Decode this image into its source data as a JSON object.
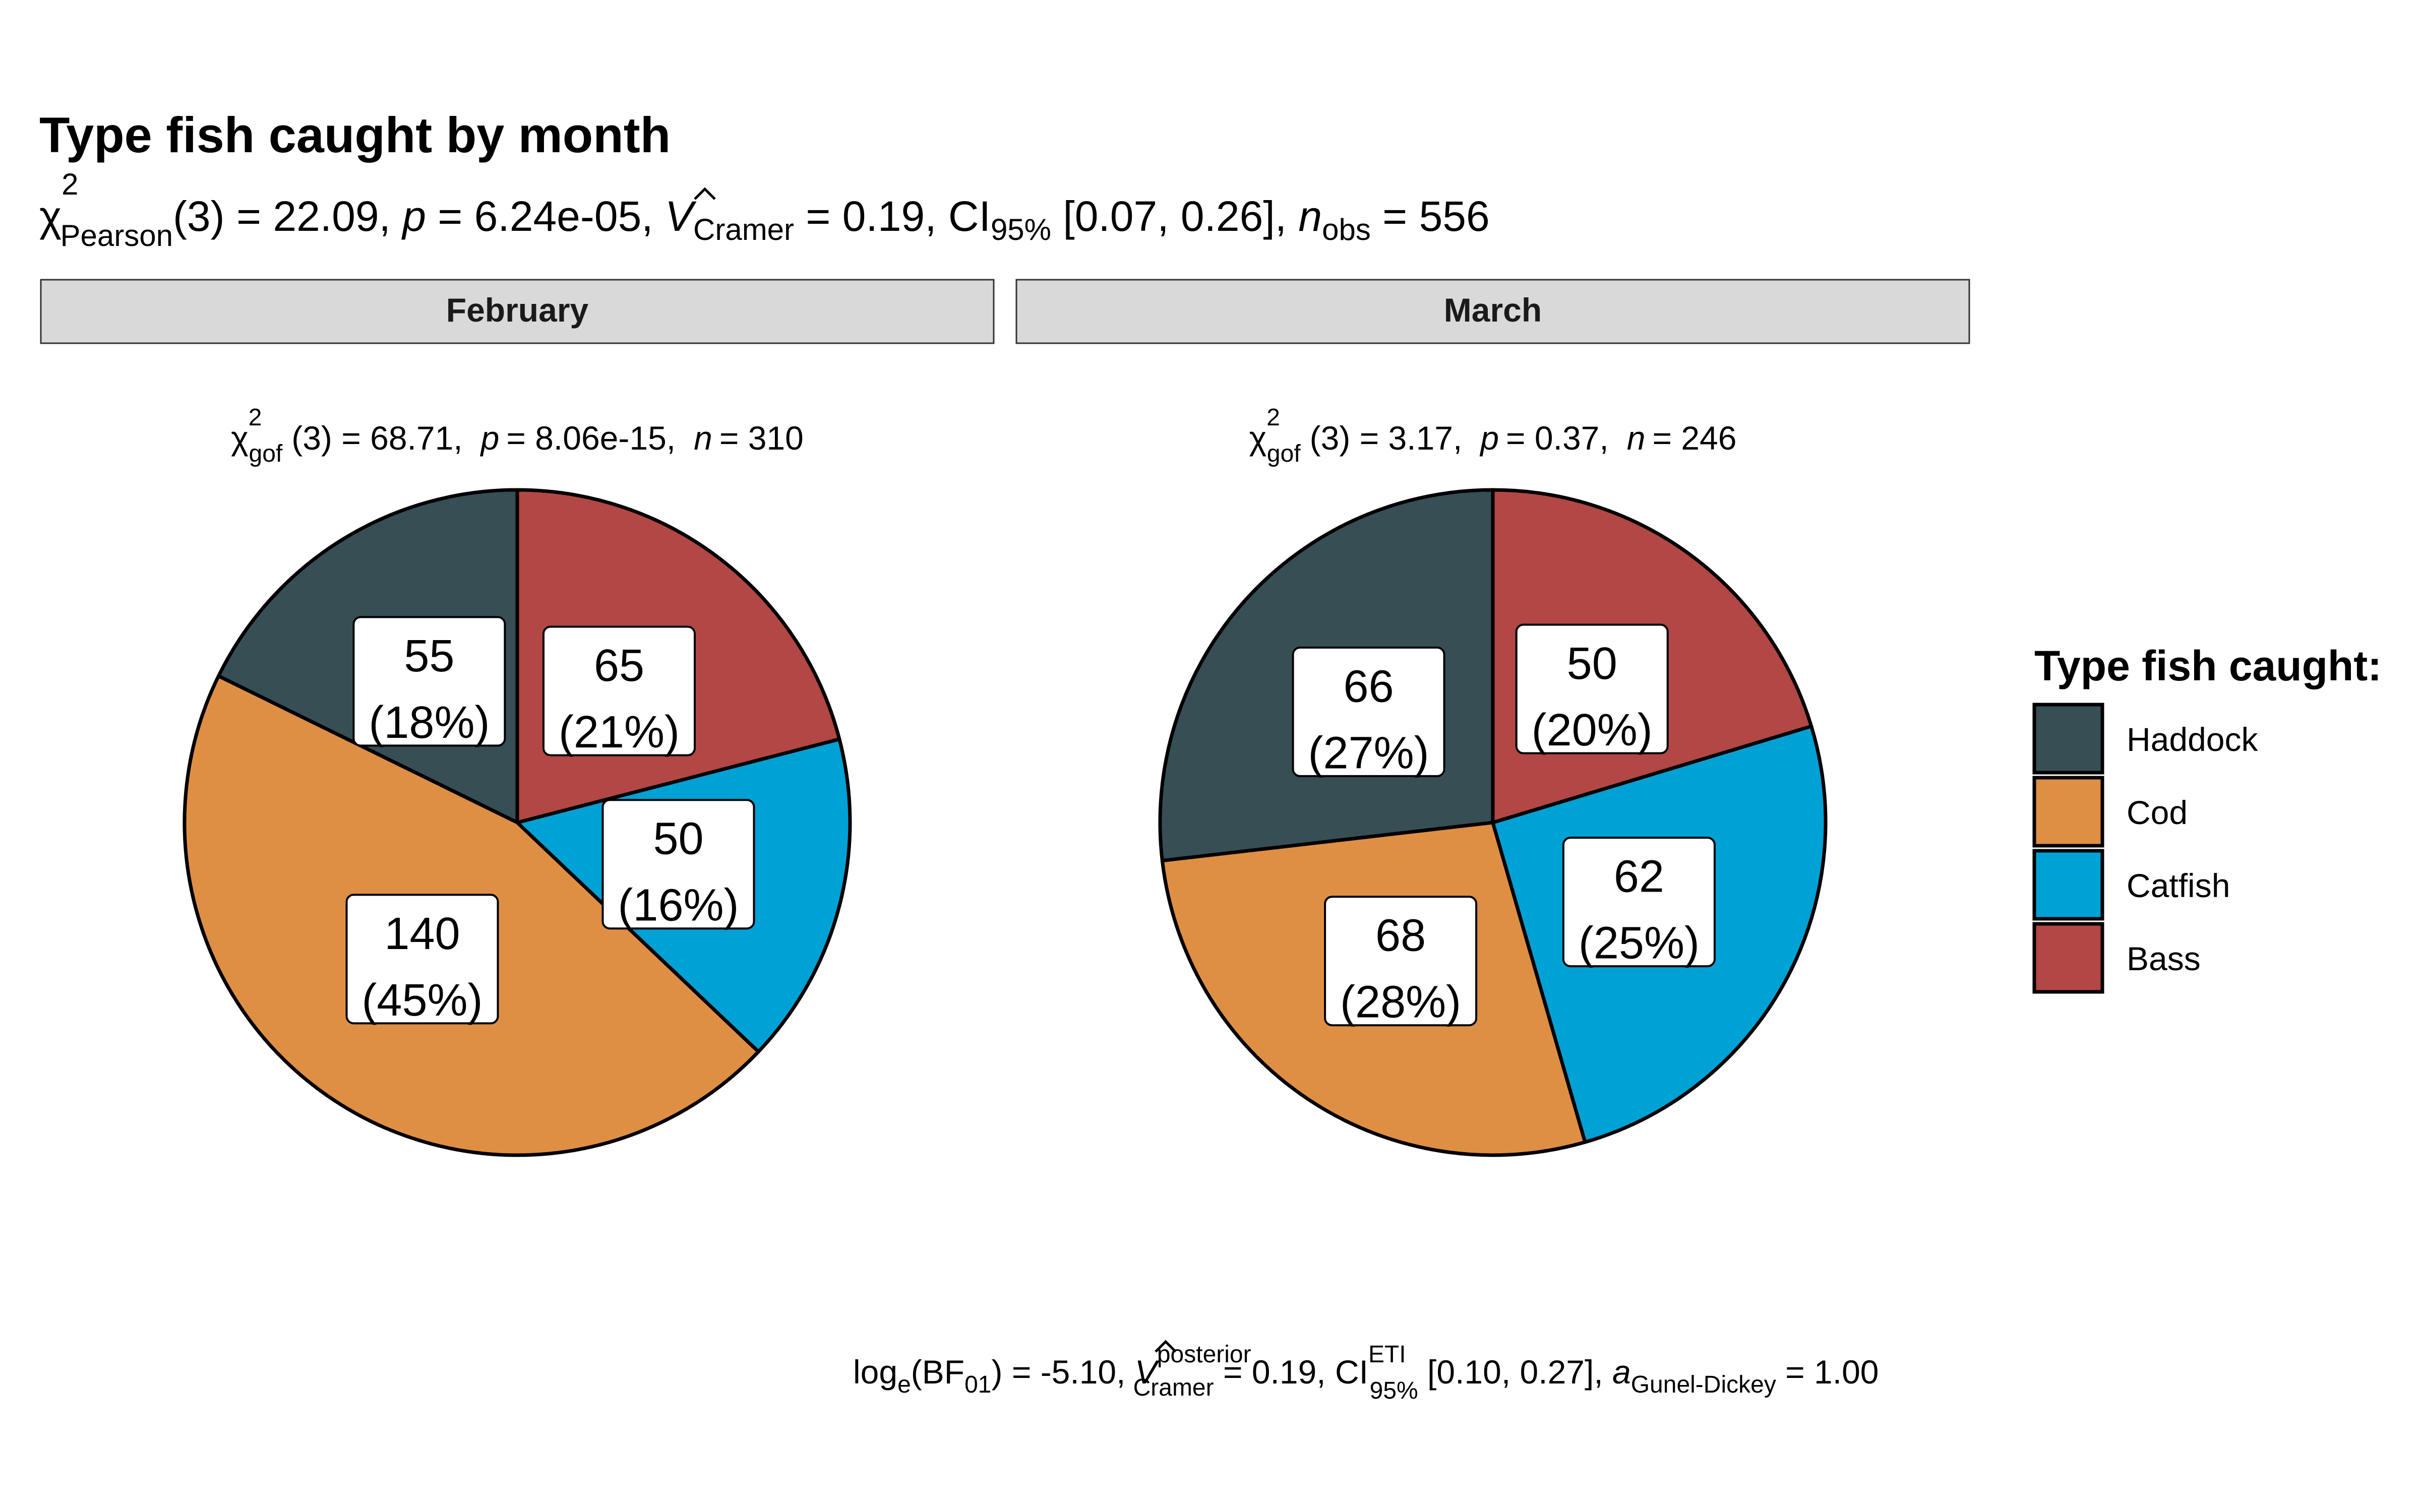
{
  "chart_data": {
    "type": "pie",
    "title": "Type fish caught by month",
    "subtitle_parts": {
      "chi": "χ",
      "chi_sup": "2",
      "chi_sub": "Pearson",
      "df": "(3) = 22.09, ",
      "p_label": "p",
      "p_value": " = 6.24e-05, ",
      "v_label": "V",
      "v_sub": "Cramer",
      "v_value": " = 0.19, CI",
      "ci_sub": "95%",
      "ci_value": " [0.07, 0.26], ",
      "n_label": "n",
      "n_sub": "obs",
      "n_value": " = 556"
    },
    "legend_title": "Type fish caught:",
    "categories": [
      "Haddock",
      "Cod",
      "Catfish",
      "Bass"
    ],
    "colors": {
      "Haddock": "#374E55",
      "Cod": "#DF8F44",
      "Catfish": "#00A1D5",
      "Bass": "#B24745"
    },
    "legend_position": "right",
    "facets": [
      {
        "name": "February",
        "stat_parts": {
          "chi": "χ",
          "chi_sup": "2",
          "chi_sub": "gof",
          "df": "(3) = 68.71,",
          "p_label": "p",
          "p_value": "= 8.06e-15,",
          "n_label": "n",
          "n_value": "= 310"
        },
        "values": [
          55,
          140,
          50,
          65
        ],
        "percent_labels": [
          "(18%)",
          "(45%)",
          "(16%)",
          "(21%)"
        ]
      },
      {
        "name": "March",
        "stat_parts": {
          "chi": "χ",
          "chi_sup": "2",
          "chi_sub": "gof",
          "df": "(3) = 3.17,",
          "p_label": "p",
          "p_value": "= 0.37,",
          "n_label": "n",
          "n_value": "= 246"
        },
        "values": [
          66,
          68,
          62,
          50
        ],
        "percent_labels": [
          "(27%)",
          "(28%)",
          "(25%)",
          "(20%)"
        ]
      }
    ],
    "caption_parts": {
      "log": "log",
      "log_sub": "e",
      "bf": "(BF",
      "bf_sub": "01",
      "bf_value": ") = -5.10, ",
      "v_label": "V",
      "v_sup": "posterior",
      "v_sub": "Cramer",
      "v_value": " = 0.19, CI",
      "ci_sup": "ETI",
      "ci_sub": "95%",
      "ci_value": " [0.10, 0.27], ",
      "a_label": "a",
      "a_sub": "Gunel-Dickey",
      "a_value": " = 1.00"
    }
  }
}
